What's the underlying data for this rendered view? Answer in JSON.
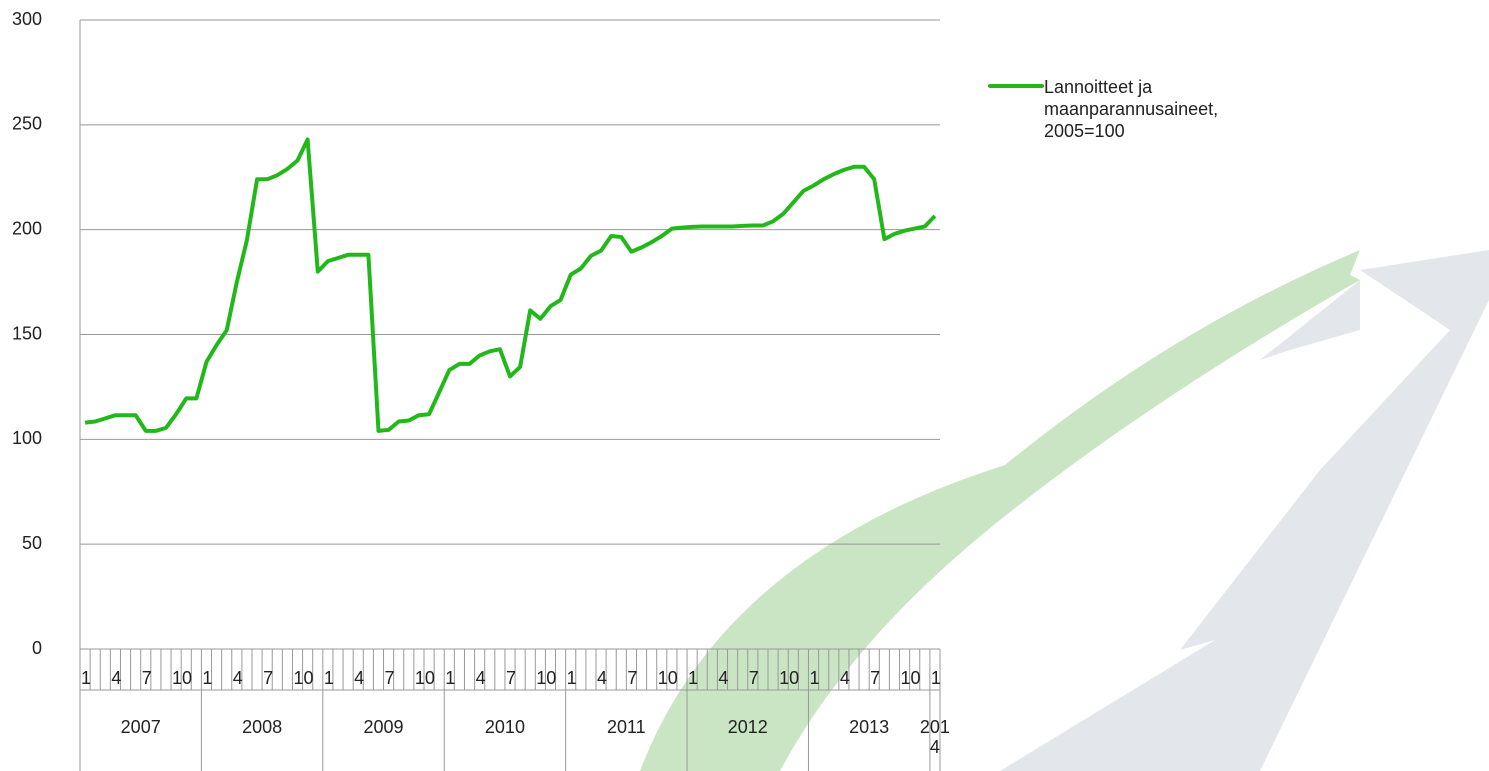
{
  "chart_data": {
    "type": "line",
    "categories": [
      "1",
      null,
      null,
      "4",
      null,
      null,
      "7",
      null,
      null,
      "10",
      null,
      null,
      "1",
      null,
      null,
      "4",
      null,
      null,
      "7",
      null,
      null,
      "10",
      null,
      null,
      "1",
      null,
      null,
      "4",
      null,
      null,
      "7",
      null,
      null,
      "10",
      null,
      null,
      "1",
      null,
      null,
      "4",
      null,
      null,
      "7",
      null,
      null,
      "10",
      null,
      null,
      "1",
      null,
      null,
      "4",
      null,
      null,
      "7",
      null,
      null,
      "10",
      null,
      null,
      "1",
      null,
      null,
      "4",
      null,
      null,
      "7",
      null,
      null,
      "10",
      null,
      null,
      "1",
      null,
      null,
      "4",
      null,
      null,
      "7",
      null,
      null,
      "10",
      null,
      null,
      "1"
    ],
    "years": [
      "2007",
      "2008",
      "2009",
      "2010",
      "2011",
      "2012",
      "2013",
      "2014"
    ],
    "series": [
      {
        "name": "Lannoitteet ja maanparannusaineet, 2005=100",
        "color": "#22b81a",
        "values": [
          108,
          108.5,
          110,
          111.5,
          111.5,
          111.5,
          104,
          104,
          105.5,
          112,
          119.5,
          119.5,
          137,
          145,
          152,
          175,
          195,
          224,
          224,
          226,
          229,
          233,
          243,
          180,
          185,
          186.5,
          188,
          188,
          188,
          104,
          104.5,
          108.5,
          109,
          111.5,
          112,
          122.5,
          133,
          136,
          136,
          140,
          142,
          143,
          130,
          134.5,
          161.5,
          157.5,
          163.5,
          166.5,
          178.5,
          181.5,
          187.5,
          190,
          197,
          196.5,
          189.5,
          191.5,
          194,
          197,
          200.5,
          201,
          201.3,
          201.5,
          201.5,
          201.5,
          201.5,
          201.8,
          202,
          202,
          204,
          207.5,
          213,
          218.5,
          221,
          224,
          226.5,
          228.5,
          230,
          230,
          224,
          195.5,
          198,
          199.5,
          200.5,
          201.5,
          206.5
        ]
      }
    ],
    "ylim": [
      0,
      300
    ],
    "yticks": [
      0,
      50,
      100,
      150,
      200,
      250,
      300
    ],
    "grid": true,
    "legend": "right"
  }
}
